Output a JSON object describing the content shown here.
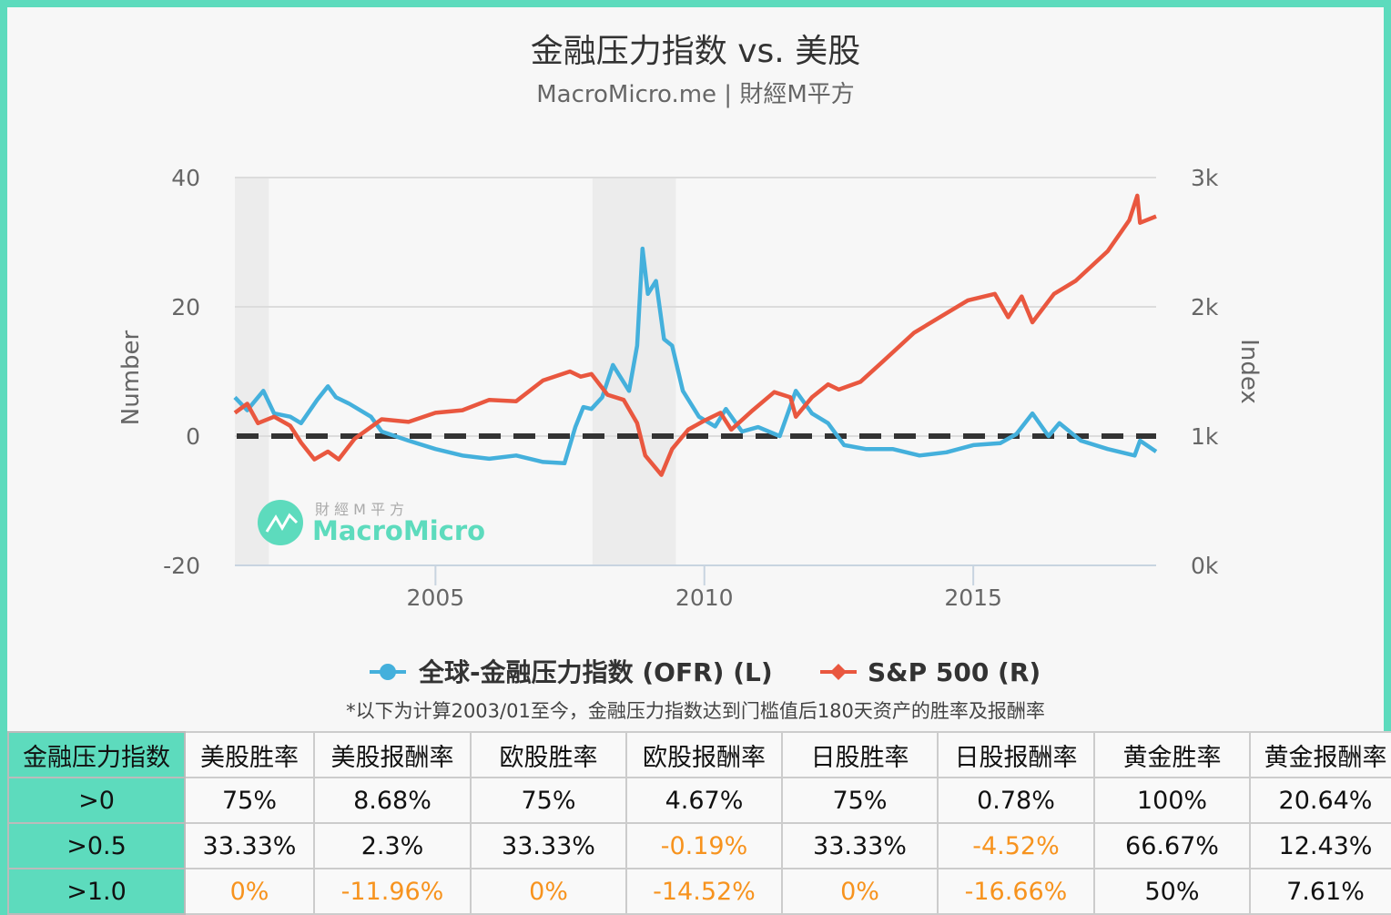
{
  "chart_data": {
    "type": "line",
    "title": "金融压力指数 vs. 美股",
    "subtitle": "MacroMicro.me | 財經M平方",
    "left_axis": {
      "title": "Number",
      "ticks": [
        "40",
        "20",
        "0",
        "-20"
      ],
      "tick_values": [
        40,
        20,
        0,
        -20
      ],
      "range": [
        -20,
        40
      ]
    },
    "right_axis": {
      "title": "Index",
      "ticks": [
        "3k",
        "2k",
        "1k",
        "0k"
      ],
      "tick_values": [
        3000,
        2000,
        1000,
        0
      ],
      "range": [
        0,
        3000
      ]
    },
    "x_axis": {
      "ticks": [
        "2005",
        "2010",
        "2015"
      ],
      "tick_values": [
        2005,
        2010,
        2015
      ],
      "range": [
        2001.27,
        2018.4
      ]
    },
    "grid": true,
    "legend_placement": "bottom",
    "shaded_periods": [
      [
        2001.27,
        2001.9
      ],
      [
        2007.92,
        2009.47
      ]
    ],
    "threshold_line": {
      "axis": "left",
      "value": 0,
      "style": "dashed",
      "color": "#333333"
    },
    "series": [
      {
        "name": "全球-金融压力指数 (OFR) (L)",
        "axis": "left",
        "color": "#44b0dc",
        "x": [
          2001.27,
          2001.5,
          2001.8,
          2002.0,
          2002.3,
          2002.5,
          2002.8,
          2003.0,
          2003.15,
          2003.4,
          2003.8,
          2004.0,
          2004.5,
          2005.0,
          2005.5,
          2006.0,
          2006.5,
          2007.0,
          2007.4,
          2007.6,
          2007.75,
          2007.9,
          2008.1,
          2008.3,
          2008.6,
          2008.75,
          2008.85,
          2008.95,
          2009.1,
          2009.25,
          2009.4,
          2009.6,
          2009.9,
          2010.2,
          2010.4,
          2010.7,
          2011.0,
          2011.4,
          2011.7,
          2012.0,
          2012.3,
          2012.6,
          2013.0,
          2013.5,
          2014.0,
          2014.5,
          2015.0,
          2015.5,
          2015.8,
          2016.1,
          2016.4,
          2016.6,
          2017.0,
          2017.5,
          2018.0,
          2018.1,
          2018.4
        ],
        "y": [
          6,
          4,
          7,
          3.5,
          3,
          2,
          5.6,
          7.7,
          6,
          5,
          3,
          0.7,
          -0.7,
          -2,
          -3,
          -3.5,
          -3,
          -4,
          -4.2,
          1.4,
          4.5,
          4.2,
          6,
          11,
          7,
          14,
          29,
          22,
          24,
          15,
          14,
          7,
          3,
          1.5,
          4.2,
          0.7,
          1.4,
          0,
          7,
          3.5,
          2,
          -1.4,
          -2,
          -2,
          -3,
          -2.5,
          -1.4,
          -1.1,
          0.3,
          3.5,
          0,
          2,
          -0.7,
          -2,
          -3,
          -0.7,
          -2.4
        ]
      },
      {
        "name": "S&P 500 (R)",
        "axis": "right",
        "color": "#e9573f",
        "x": [
          2001.27,
          2001.5,
          2001.7,
          2002.0,
          2002.3,
          2002.5,
          2002.75,
          2003.0,
          2003.2,
          2003.5,
          2004.0,
          2004.5,
          2005.0,
          2005.5,
          2006.0,
          2006.5,
          2007.0,
          2007.5,
          2007.7,
          2007.9,
          2008.2,
          2008.5,
          2008.75,
          2008.9,
          2009.2,
          2009.4,
          2009.7,
          2010.0,
          2010.3,
          2010.5,
          2010.9,
          2011.3,
          2011.6,
          2011.7,
          2012.0,
          2012.3,
          2012.5,
          2012.9,
          2013.3,
          2013.9,
          2014.5,
          2014.9,
          2015.4,
          2015.65,
          2015.9,
          2016.1,
          2016.5,
          2016.9,
          2017.5,
          2017.9,
          2018.05,
          2018.1,
          2018.4
        ],
        "y": [
          1180,
          1250,
          1100,
          1150,
          1080,
          950,
          820,
          880,
          820,
          980,
          1130,
          1110,
          1180,
          1200,
          1280,
          1270,
          1430,
          1500,
          1460,
          1480,
          1320,
          1280,
          1100,
          850,
          700,
          900,
          1050,
          1120,
          1180,
          1050,
          1200,
          1340,
          1300,
          1150,
          1300,
          1400,
          1360,
          1420,
          1570,
          1800,
          1950,
          2050,
          2100,
          1920,
          2080,
          1880,
          2100,
          2200,
          2430,
          2670,
          2860,
          2650,
          2700
        ]
      }
    ]
  },
  "legend": {
    "items": [
      "全球-金融压力指数 (OFR) (L)",
      "S&P 500 (R)"
    ]
  },
  "watermark": {
    "top": "財 經 M 平 方",
    "brand": "MacroMicro"
  },
  "note": "*以下为计算2003/01至今，金融压力指数达到门槛值后180天资产的胜率及报酬率",
  "table": {
    "headers": [
      "金融压力指数",
      "美股胜率",
      "美股报酬率",
      "欧股胜率",
      "欧股报酬率",
      "日股胜率",
      "日股报酬率",
      "黄金胜率",
      "黄金报酬率"
    ],
    "rows": [
      [
        ">0",
        "75%",
        "8.68%",
        "75%",
        "4.67%",
        "75%",
        "0.78%",
        "100%",
        "20.64%"
      ],
      [
        ">0.5",
        "33.33%",
        "2.3%",
        "33.33%",
        "-0.19%",
        "33.33%",
        "-4.52%",
        "66.67%",
        "12.43%"
      ],
      [
        ">1.0",
        "0%",
        "-11.96%",
        "0%",
        "-14.52%",
        "0%",
        "-16.66%",
        "50%",
        "7.61%"
      ]
    ],
    "highlight_color": "#f7931e",
    "highlighted_cells": [
      [
        1,
        4
      ],
      [
        1,
        6
      ],
      [
        2,
        1
      ],
      [
        2,
        2
      ],
      [
        2,
        3
      ],
      [
        2,
        4
      ],
      [
        2,
        5
      ],
      [
        2,
        6
      ]
    ]
  },
  "colors": {
    "frame": "#5ddbbd",
    "background": "#f7f7f7"
  }
}
